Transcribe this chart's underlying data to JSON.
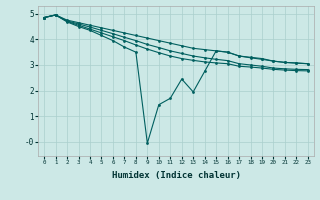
{
  "xlabel": "Humidex (Indice chaleur)",
  "bg_color": "#cce8e6",
  "grid_color": "#aacfcd",
  "line_color": "#005f5f",
  "xlim": [
    -0.5,
    23.5
  ],
  "ylim": [
    -0.55,
    5.3
  ],
  "yticks": [
    0,
    1,
    2,
    3,
    4,
    5
  ],
  "ytick_labels": [
    "-0",
    "1",
    "2",
    "3",
    "4",
    "5"
  ],
  "xticks": [
    0,
    1,
    2,
    3,
    4,
    5,
    6,
    7,
    8,
    9,
    10,
    11,
    12,
    13,
    14,
    15,
    16,
    17,
    18,
    19,
    20,
    21,
    22,
    23
  ],
  "line1_x": [
    0,
    1,
    2,
    3,
    4,
    5,
    6,
    7,
    8,
    9,
    10,
    11,
    12,
    13,
    14,
    15,
    16,
    17,
    18,
    19,
    20,
    21,
    22,
    23
  ],
  "line1_y": [
    4.85,
    4.95,
    4.75,
    4.65,
    4.55,
    4.45,
    4.35,
    4.25,
    4.15,
    4.05,
    3.95,
    3.85,
    3.75,
    3.65,
    3.6,
    3.55,
    3.5,
    3.35,
    3.3,
    3.25,
    3.15,
    3.1,
    3.08,
    3.05
  ],
  "line2_x": [
    0,
    1,
    2,
    3,
    4,
    5,
    6,
    7,
    8,
    9,
    10,
    11,
    12,
    13,
    14,
    15,
    16,
    17,
    18,
    19,
    20,
    21,
    22,
    23
  ],
  "line2_y": [
    4.85,
    4.95,
    4.72,
    4.6,
    4.48,
    4.35,
    4.22,
    4.08,
    3.95,
    3.8,
    3.68,
    3.55,
    3.45,
    3.35,
    3.28,
    3.22,
    3.17,
    3.05,
    3.0,
    2.95,
    2.88,
    2.85,
    2.83,
    2.82
  ],
  "line3_x": [
    0,
    1,
    2,
    3,
    4,
    5,
    6,
    7,
    8,
    9,
    10,
    11,
    12,
    13,
    14,
    15,
    16,
    17,
    18,
    19,
    20,
    21,
    22,
    23
  ],
  "line3_y": [
    4.85,
    4.95,
    4.7,
    4.55,
    4.4,
    4.25,
    4.1,
    3.95,
    3.78,
    3.62,
    3.48,
    3.35,
    3.25,
    3.18,
    3.12,
    3.08,
    3.05,
    2.95,
    2.92,
    2.88,
    2.83,
    2.8,
    2.78,
    2.77
  ],
  "line4_x": [
    0,
    1,
    2,
    3,
    4,
    5,
    6,
    7,
    8,
    9,
    10,
    11,
    12,
    13,
    14,
    15,
    16,
    17,
    18,
    19,
    20,
    21,
    22,
    23
  ],
  "line4_y": [
    4.85,
    4.95,
    4.68,
    4.5,
    4.35,
    4.15,
    3.95,
    3.7,
    3.5,
    -0.05,
    1.45,
    1.7,
    2.45,
    1.95,
    2.75,
    3.55,
    3.5,
    3.35,
    3.28,
    3.22,
    3.15,
    3.1,
    3.07,
    3.05
  ]
}
